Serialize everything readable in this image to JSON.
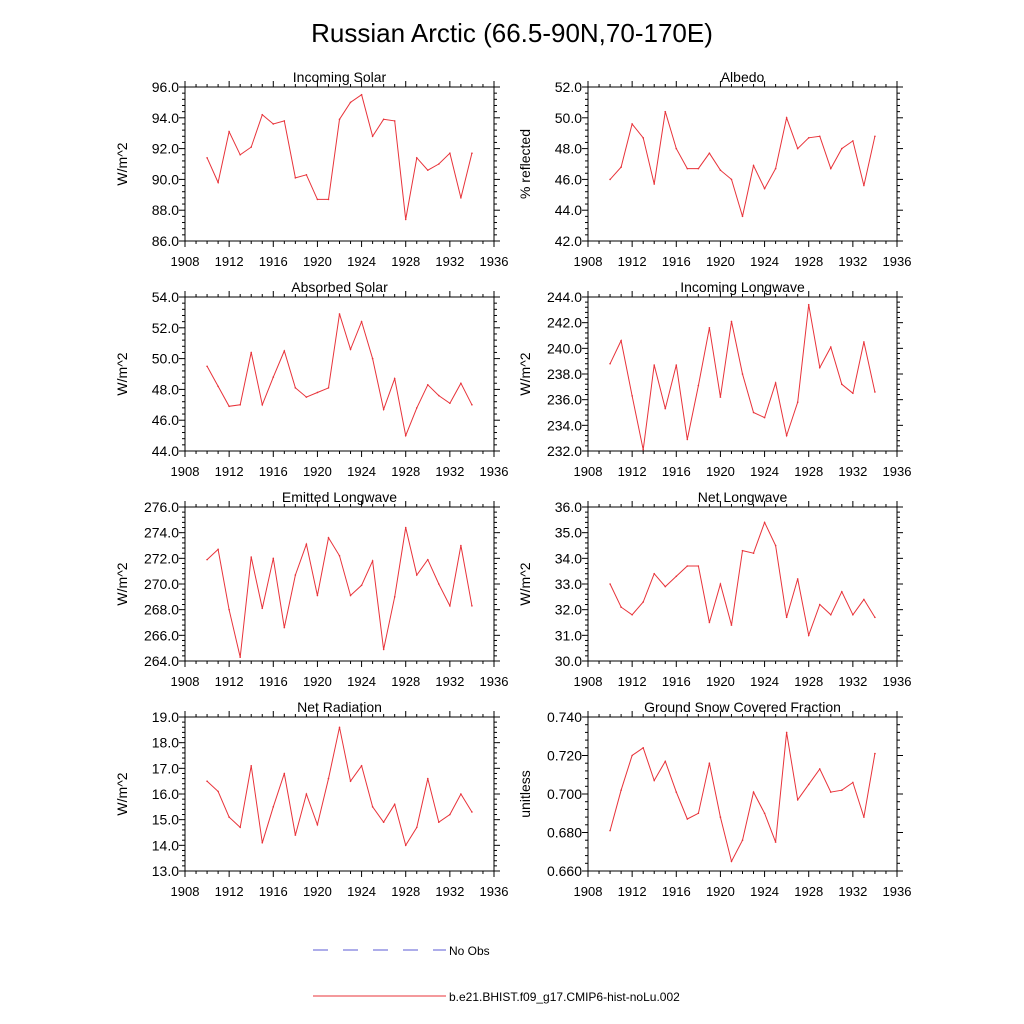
{
  "title": "Russian Arctic (66.5-90N,70-170E)",
  "legend": {
    "items": [
      {
        "label": "No Obs",
        "style": "dashed",
        "color": "#5b5bd6"
      },
      {
        "label": "b.e21.BHIST.f09_g17.CMIP6-hist-noLu.002",
        "style": "solid",
        "color": "#e8333a"
      }
    ]
  },
  "colors": {
    "series": "#e8333a",
    "axis": "#000000"
  },
  "chart_data": [
    {
      "type": "line",
      "title": "Incoming Solar",
      "ylabel": "W/m^2",
      "xlim": [
        1908,
        1936
      ],
      "ylim": [
        86.0,
        96.0
      ],
      "xticks": [
        1908,
        1912,
        1916,
        1920,
        1924,
        1928,
        1932,
        1936
      ],
      "yticks": [
        "86.0",
        "88.0",
        "90.0",
        "92.0",
        "94.0",
        "96.0"
      ],
      "x": [
        1910,
        1911,
        1912,
        1913,
        1914,
        1915,
        1916,
        1917,
        1918,
        1919,
        1920,
        1921,
        1922,
        1923,
        1924,
        1925,
        1926,
        1927,
        1928,
        1929,
        1930,
        1931,
        1932,
        1933,
        1934
      ],
      "values": [
        91.4,
        89.8,
        93.1,
        91.6,
        92.1,
        94.2,
        93.6,
        93.8,
        90.1,
        90.3,
        88.7,
        88.7,
        93.9,
        95.0,
        95.5,
        92.8,
        93.9,
        93.8,
        87.4,
        91.4,
        90.6,
        91.0,
        91.7,
        88.8,
        91.7
      ]
    },
    {
      "type": "line",
      "title": "Albedo",
      "ylabel": "% reflected",
      "xlim": [
        1908,
        1936
      ],
      "ylim": [
        42.0,
        52.0
      ],
      "xticks": [
        1908,
        1912,
        1916,
        1920,
        1924,
        1928,
        1932,
        1936
      ],
      "yticks": [
        "42.0",
        "44.0",
        "46.0",
        "48.0",
        "50.0",
        "52.0"
      ],
      "x": [
        1910,
        1911,
        1912,
        1913,
        1914,
        1915,
        1916,
        1917,
        1918,
        1919,
        1920,
        1921,
        1922,
        1923,
        1924,
        1925,
        1926,
        1927,
        1928,
        1929,
        1930,
        1931,
        1932,
        1933,
        1934
      ],
      "values": [
        46.0,
        46.8,
        49.6,
        48.7,
        45.7,
        50.4,
        48.0,
        46.7,
        46.7,
        47.7,
        46.6,
        46.0,
        43.6,
        46.9,
        45.4,
        46.7,
        50.0,
        48.0,
        48.7,
        48.8,
        46.7,
        48.0,
        48.5,
        45.6,
        48.8
      ]
    },
    {
      "type": "line",
      "title": "Absorbed Solar",
      "ylabel": "W/m^2",
      "xlim": [
        1908,
        1936
      ],
      "ylim": [
        44.0,
        54.0
      ],
      "xticks": [
        1908,
        1912,
        1916,
        1920,
        1924,
        1928,
        1932,
        1936
      ],
      "yticks": [
        "44.0",
        "46.0",
        "48.0",
        "50.0",
        "52.0",
        "54.0"
      ],
      "x": [
        1910,
        1911,
        1912,
        1913,
        1914,
        1915,
        1916,
        1917,
        1918,
        1919,
        1920,
        1921,
        1922,
        1923,
        1924,
        1925,
        1926,
        1927,
        1928,
        1929,
        1930,
        1931,
        1932,
        1933,
        1934
      ],
      "values": [
        49.5,
        48.2,
        46.9,
        47.0,
        50.4,
        47.0,
        48.8,
        50.5,
        48.1,
        47.5,
        47.8,
        48.1,
        52.9,
        50.6,
        52.4,
        50.0,
        46.7,
        48.7,
        45.0,
        46.8,
        48.3,
        47.6,
        47.1,
        48.4,
        47.0
      ]
    },
    {
      "type": "line",
      "title": "Incoming Longwave",
      "ylabel": "W/m^2",
      "xlim": [
        1908,
        1936
      ],
      "ylim": [
        232.0,
        244.0
      ],
      "xticks": [
        1908,
        1912,
        1916,
        1920,
        1924,
        1928,
        1932,
        1936
      ],
      "yticks": [
        "232.0",
        "234.0",
        "236.0",
        "238.0",
        "240.0",
        "242.0",
        "244.0"
      ],
      "x": [
        1910,
        1911,
        1912,
        1913,
        1914,
        1915,
        1916,
        1917,
        1918,
        1919,
        1920,
        1921,
        1922,
        1923,
        1924,
        1925,
        1926,
        1927,
        1928,
        1929,
        1930,
        1931,
        1932,
        1933,
        1934
      ],
      "values": [
        238.8,
        240.6,
        236.3,
        232.1,
        238.7,
        235.3,
        238.7,
        232.9,
        237.1,
        241.6,
        236.2,
        242.1,
        238.0,
        235.0,
        234.6,
        237.3,
        233.2,
        235.8,
        243.4,
        238.5,
        240.1,
        237.2,
        236.5,
        240.5,
        236.6
      ]
    },
    {
      "type": "line",
      "title": "Emitted Longwave",
      "ylabel": "W/m^2",
      "xlim": [
        1908,
        1936
      ],
      "ylim": [
        264.0,
        276.0
      ],
      "xticks": [
        1908,
        1912,
        1916,
        1920,
        1924,
        1928,
        1932,
        1936
      ],
      "yticks": [
        "264.0",
        "266.0",
        "268.0",
        "270.0",
        "272.0",
        "274.0",
        "276.0"
      ],
      "x": [
        1910,
        1911,
        1912,
        1913,
        1914,
        1915,
        1916,
        1917,
        1918,
        1919,
        1920,
        1921,
        1922,
        1923,
        1924,
        1925,
        1926,
        1927,
        1928,
        1929,
        1930,
        1931,
        1932,
        1933,
        1934
      ],
      "values": [
        271.9,
        272.7,
        268.0,
        264.3,
        272.1,
        268.1,
        272.0,
        266.6,
        270.7,
        273.1,
        269.1,
        273.6,
        272.2,
        269.1,
        269.9,
        271.8,
        264.9,
        269.0,
        274.4,
        270.7,
        271.9,
        270.0,
        268.3,
        273.0,
        268.3
      ]
    },
    {
      "type": "line",
      "title": "Net Longwave",
      "ylabel": "W/m^2",
      "xlim": [
        1908,
        1936
      ],
      "ylim": [
        30.0,
        36.0
      ],
      "xticks": [
        1908,
        1912,
        1916,
        1920,
        1924,
        1928,
        1932,
        1936
      ],
      "yticks": [
        "30.0",
        "31.0",
        "32.0",
        "33.0",
        "34.0",
        "35.0",
        "36.0"
      ],
      "x": [
        1910,
        1911,
        1912,
        1913,
        1914,
        1915,
        1916,
        1917,
        1918,
        1919,
        1920,
        1921,
        1922,
        1923,
        1924,
        1925,
        1926,
        1927,
        1928,
        1929,
        1930,
        1931,
        1932,
        1933,
        1934
      ],
      "values": [
        33.0,
        32.1,
        31.8,
        32.3,
        33.4,
        32.9,
        33.3,
        33.7,
        33.7,
        31.5,
        33.0,
        31.4,
        34.3,
        34.2,
        35.4,
        34.5,
        31.7,
        33.2,
        31.0,
        32.2,
        31.8,
        32.7,
        31.8,
        32.4,
        31.7
      ]
    },
    {
      "type": "line",
      "title": "Net Radiation",
      "ylabel": "W/m^2",
      "xlim": [
        1908,
        1936
      ],
      "ylim": [
        13.0,
        19.0
      ],
      "xticks": [
        1908,
        1912,
        1916,
        1920,
        1924,
        1928,
        1932,
        1936
      ],
      "yticks": [
        "13.0",
        "14.0",
        "15.0",
        "16.0",
        "17.0",
        "18.0",
        "19.0"
      ],
      "x": [
        1910,
        1911,
        1912,
        1913,
        1914,
        1915,
        1916,
        1917,
        1918,
        1919,
        1920,
        1921,
        1922,
        1923,
        1924,
        1925,
        1926,
        1927,
        1928,
        1929,
        1930,
        1931,
        1932,
        1933,
        1934
      ],
      "values": [
        16.5,
        16.1,
        15.1,
        14.7,
        17.1,
        14.1,
        15.5,
        16.8,
        14.4,
        16.0,
        14.8,
        16.6,
        18.6,
        16.5,
        17.1,
        15.5,
        14.9,
        15.6,
        14.0,
        14.7,
        16.6,
        14.9,
        15.2,
        16.0,
        15.3
      ]
    },
    {
      "type": "line",
      "title": "Ground Snow Covered Fraction",
      "ylabel": "unitless",
      "xlim": [
        1908,
        1936
      ],
      "ylim": [
        0.66,
        0.74
      ],
      "xticks": [
        1908,
        1912,
        1916,
        1920,
        1924,
        1928,
        1932,
        1936
      ],
      "yticks": [
        "0.660",
        "0.680",
        "0.700",
        "0.720",
        "0.740"
      ],
      "x": [
        1910,
        1911,
        1912,
        1913,
        1914,
        1915,
        1916,
        1917,
        1918,
        1919,
        1920,
        1921,
        1922,
        1923,
        1924,
        1925,
        1926,
        1927,
        1928,
        1929,
        1930,
        1931,
        1932,
        1933,
        1934
      ],
      "values": [
        0.681,
        0.702,
        0.72,
        0.724,
        0.707,
        0.717,
        0.701,
        0.687,
        0.69,
        0.716,
        0.688,
        0.665,
        0.676,
        0.701,
        0.69,
        0.675,
        0.732,
        0.697,
        0.705,
        0.713,
        0.701,
        0.702,
        0.706,
        0.688,
        0.721
      ]
    }
  ]
}
